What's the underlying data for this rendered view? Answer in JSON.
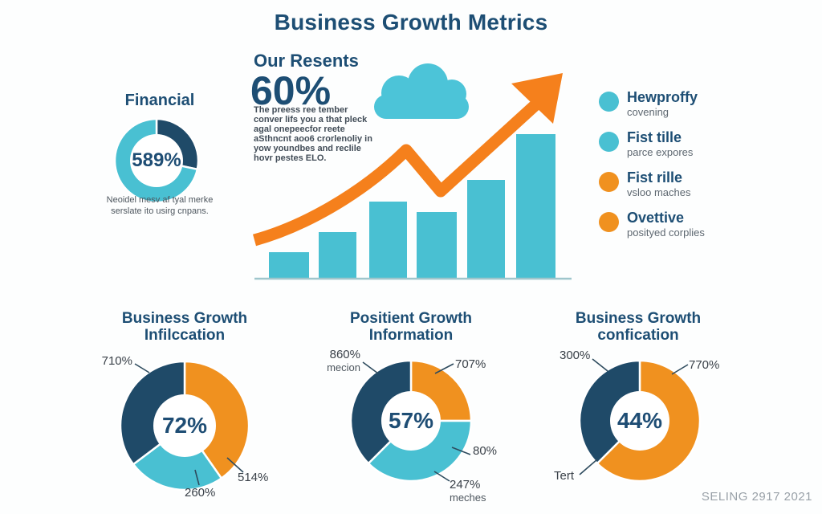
{
  "title": "Business Growth Metrics",
  "footer": "SELING 2917 2021",
  "colors": {
    "teal": "#49c0d2",
    "navy": "#1f4a68",
    "orange": "#f0911f",
    "arrow_orange": "#f5801c",
    "cloud_teal": "#4cc4d8",
    "baseline": "#9fc6cc",
    "leader": "#2e4b5e"
  },
  "financial": {
    "heading": "Financial",
    "caption": "Neoidel mesv af tyal merke serslate ito usirg cnpans."
  },
  "highlight": {
    "heading": "Our Resents",
    "value": "60%",
    "body": "The preess ree tember conver lifs you a that pleck agal onepeecfor reete aSthncnt aoo6 crorlenoliy in yow youndbes and reclile hovr pestes ELO."
  },
  "legend": [
    {
      "color": "teal",
      "label": "Hewproffy",
      "sub": "covening"
    },
    {
      "color": "teal",
      "label": "Fist tille",
      "sub": "parce expores"
    },
    {
      "color": "orange",
      "label": "Fist rille",
      "sub": "vsloo maches"
    },
    {
      "color": "orange",
      "label": "Ovettive",
      "sub": "posityed corplies"
    }
  ],
  "sections": [
    {
      "line1": "Business Growth",
      "line2": "Infilccation"
    },
    {
      "line1": "Positient Growth",
      "line2": "Information"
    },
    {
      "line1": "Business Growth",
      "line2": "confication"
    }
  ],
  "chart_data": [
    {
      "id": "growth-bars",
      "type": "bar",
      "values": [
        33,
        58,
        96,
        83,
        123,
        180
      ],
      "unit": "relative pixel heights (no axis labels shown)",
      "categories": [
        "",
        "",
        "",
        "",
        "",
        ""
      ],
      "title": "",
      "annotations": "orange rising trend arrow with dip over 4th bar; teal cloud glyph above",
      "grid": false,
      "legend_position": "right"
    },
    {
      "id": "financial",
      "type": "pie",
      "center_label": "589%",
      "slices": [
        {
          "name": "navy",
          "deg": 102
        },
        {
          "name": "teal",
          "deg": 258
        }
      ]
    },
    {
      "id": "growth-1",
      "type": "pie",
      "title": "Business Growth Infilccation",
      "center_label": "72%",
      "slices": [
        {
          "name": "orange",
          "deg": 145
        },
        {
          "name": "teal",
          "deg": 88
        },
        {
          "name": "navy",
          "deg": 127
        }
      ],
      "callouts": {
        "c1": "710%",
        "c2": "514%",
        "c3": "260%"
      }
    },
    {
      "id": "growth-2",
      "type": "pie",
      "title": "Positient Growth Information",
      "center_label": "57%",
      "slices": [
        {
          "name": "orange",
          "deg": 90
        },
        {
          "name": "teal",
          "deg": 135
        },
        {
          "name": "navy",
          "deg": 135
        }
      ],
      "callouts": {
        "c1": "860%",
        "c1b": "mecion",
        "c2": "707%",
        "c3": "80%",
        "c4": "247%",
        "c4b": "meches"
      }
    },
    {
      "id": "growth-3",
      "type": "pie",
      "title": "Business Growth confication",
      "center_label": "44%",
      "slices": [
        {
          "name": "orange",
          "deg": 225
        },
        {
          "name": "navy",
          "deg": 135
        }
      ],
      "callouts": {
        "c1": "300%",
        "c2": "770%",
        "c3": "Tert"
      }
    }
  ]
}
